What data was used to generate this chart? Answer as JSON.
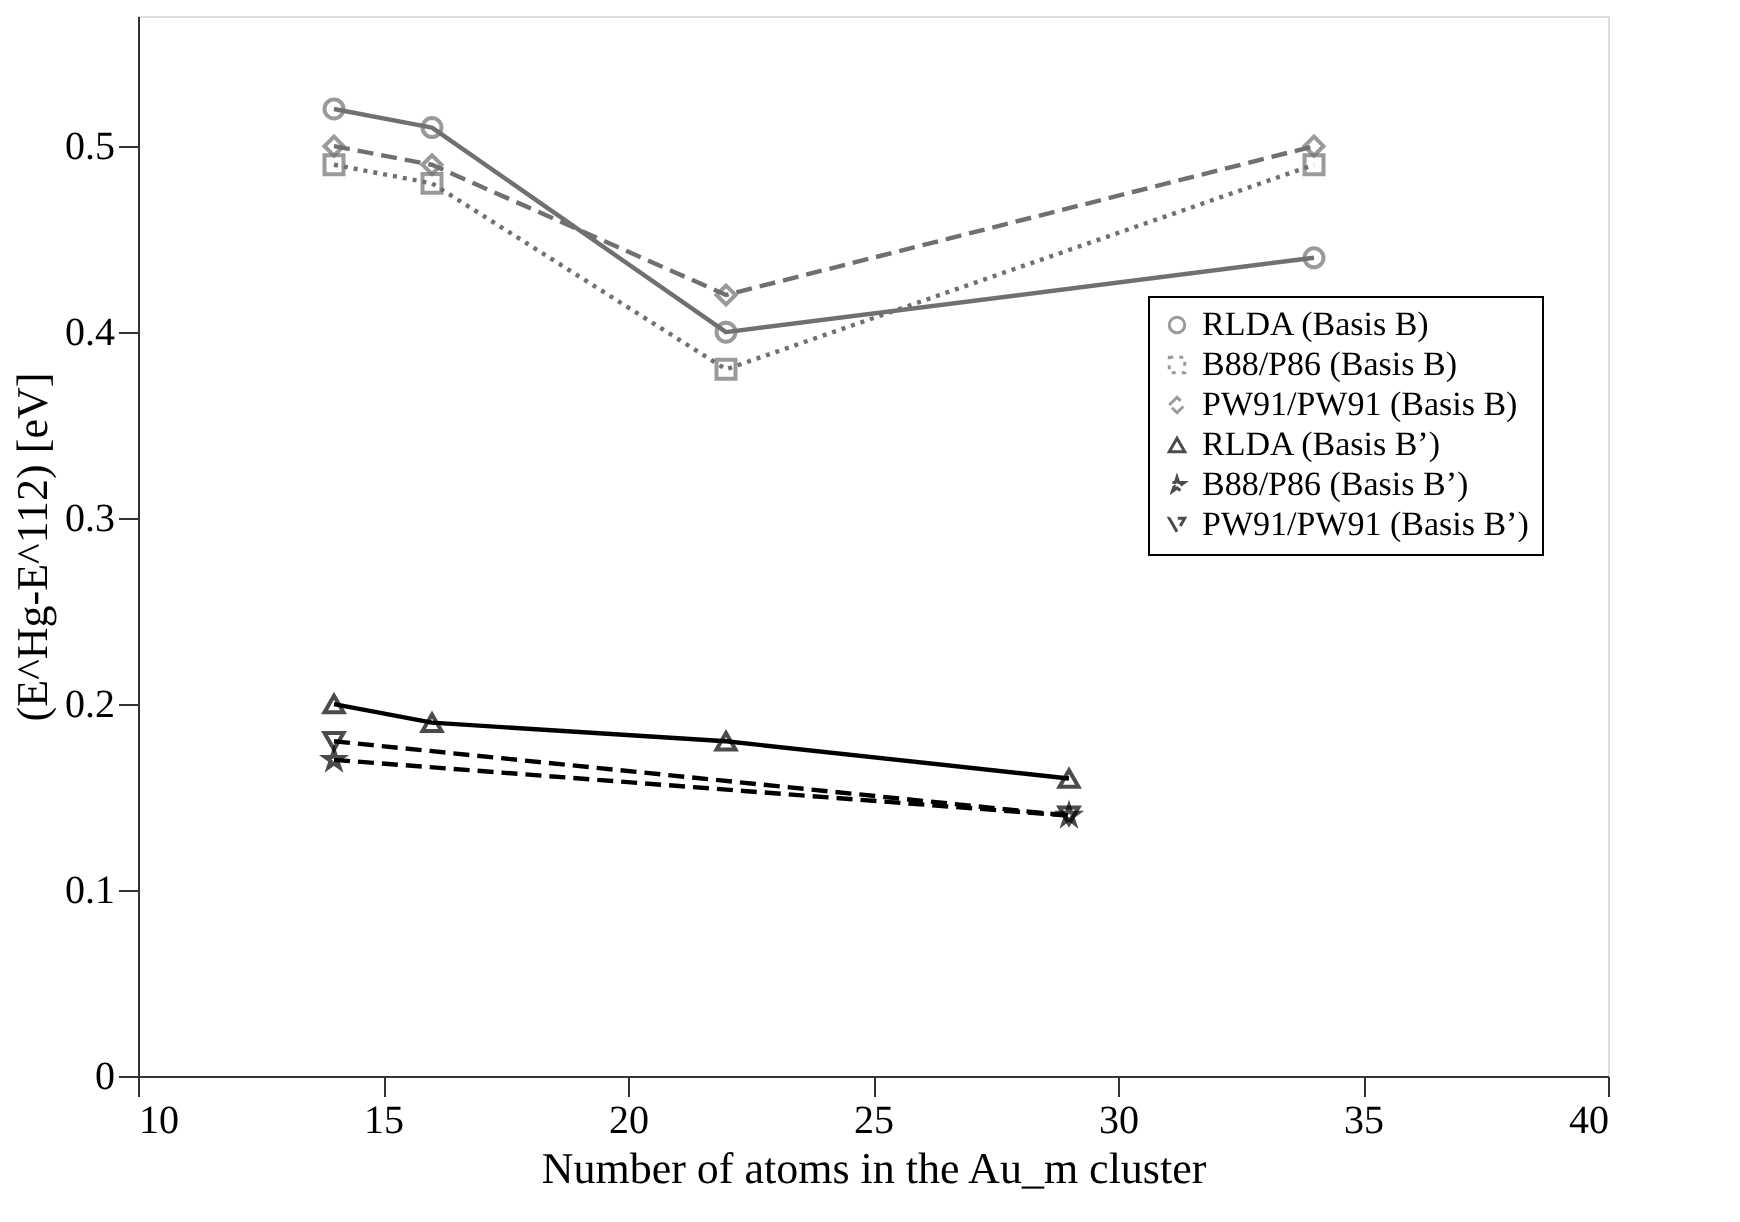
{
  "chart_data": {
    "type": "line",
    "xlabel": "Number of atoms in the Au_m cluster",
    "ylabel": "(E^Hg-E^112) [eV]",
    "xlim": [
      10,
      40
    ],
    "xticks": [
      10,
      15,
      20,
      25,
      30,
      35,
      40
    ],
    "ylim": [
      0,
      0.57
    ],
    "yticks": [
      0,
      0.1,
      0.2,
      0.3,
      0.4,
      0.5
    ],
    "grid": false,
    "legend": "right",
    "series": [
      {
        "name": "RLDA (Basis B)",
        "color": "#707070",
        "x": [
          14,
          16,
          22,
          34
        ],
        "values": [
          0.52,
          0.51,
          0.4,
          0.44
        ],
        "marker": "circle",
        "line_style": "solid"
      },
      {
        "name": "B88/P86 (Basis B)",
        "color": "#707070",
        "x": [
          14,
          16,
          22,
          34
        ],
        "values": [
          0.49,
          0.48,
          0.38,
          0.49
        ],
        "marker": "square",
        "line_style": "dotted"
      },
      {
        "name": "PW91/PW91 (Basis B)",
        "color": "#707070",
        "x": [
          14,
          16,
          22,
          34
        ],
        "values": [
          0.5,
          0.49,
          0.42,
          0.5
        ],
        "marker": "diamond",
        "line_style": "dashed"
      },
      {
        "name": "RLDA (Basis B’)",
        "color": "#000000",
        "x": [
          14,
          16,
          22,
          29
        ],
        "values": [
          0.2,
          0.19,
          0.18,
          0.16
        ],
        "marker": "triangle",
        "line_style": "solid"
      },
      {
        "name": "B88/P86 (Basis B’)",
        "color": "#000000",
        "x": [
          14,
          29
        ],
        "values": [
          0.17,
          0.14
        ],
        "marker": "star",
        "line_style": "dashed"
      },
      {
        "name": "PW91/PW91 (Basis B’)",
        "color": "#000000",
        "x": [
          14,
          29
        ],
        "values": [
          0.18,
          0.14
        ],
        "marker": "triangle-down",
        "line_style": "dashed"
      }
    ]
  }
}
